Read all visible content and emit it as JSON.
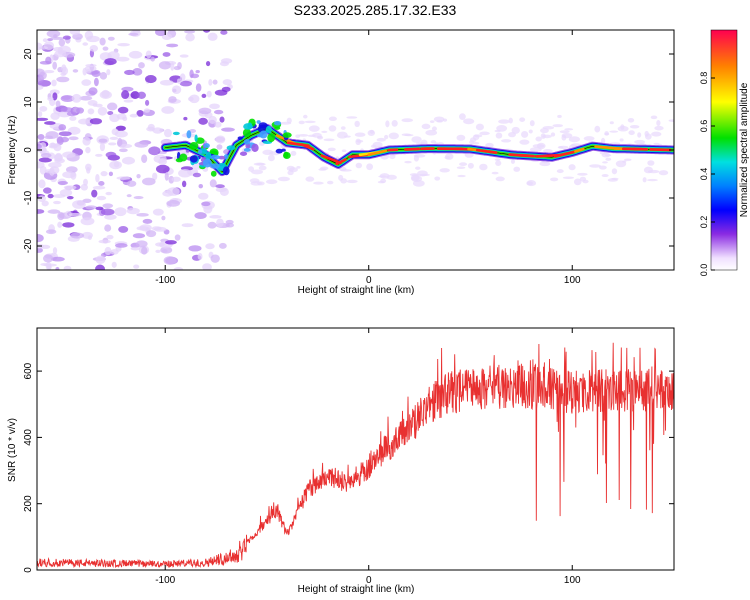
{
  "title": "S233.2025.285.17.32.E33",
  "colors": {
    "snr_line": "#e83030",
    "axis": "#000000",
    "contour": "#000000"
  },
  "chart_data": [
    {
      "type": "heatmap",
      "name": "spectrogram",
      "xlabel": "Height of straight line (km)",
      "ylabel": "Frequency (Hz)",
      "xlim": [
        -163,
        150
      ],
      "ylim": [
        -25,
        25
      ],
      "x_ticks": [
        -100,
        0,
        100
      ],
      "x_tick_labels": [
        "-100",
        "0",
        "100"
      ],
      "y_ticks": [
        -20,
        -10,
        0,
        10,
        20
      ],
      "y_tick_labels": [
        "-20",
        "-10",
        "0",
        "10",
        "20"
      ],
      "colorbar": {
        "label": "Normalized spectral amplitude",
        "range": [
          0,
          1
        ],
        "ticks": [
          0.0,
          0.2,
          0.4,
          0.6,
          0.8
        ],
        "tick_labels": [
          "0.0",
          "0.2",
          "0.4",
          "0.6",
          "0.8"
        ]
      },
      "ridge_track": [
        {
          "x": -100,
          "f": 0.5
        },
        {
          "x": -90,
          "f": 1.0
        },
        {
          "x": -80,
          "f": -1.0
        },
        {
          "x": -72,
          "f": -4.5
        },
        {
          "x": -65,
          "f": 1.0
        },
        {
          "x": -58,
          "f": 3.0
        },
        {
          "x": -50,
          "f": 4.5
        },
        {
          "x": -40,
          "f": 1.5
        },
        {
          "x": -30,
          "f": 1.0
        },
        {
          "x": -22,
          "f": -1.5
        },
        {
          "x": -15,
          "f": -3.0
        },
        {
          "x": -8,
          "f": -1.0
        },
        {
          "x": 0,
          "f": -1.0
        },
        {
          "x": 10,
          "f": 0.0
        },
        {
          "x": 30,
          "f": 0.3
        },
        {
          "x": 50,
          "f": 0.2
        },
        {
          "x": 70,
          "f": -1.0
        },
        {
          "x": 90,
          "f": -1.5
        },
        {
          "x": 100,
          "f": -0.5
        },
        {
          "x": 110,
          "f": 0.8
        },
        {
          "x": 120,
          "f": 0.3
        },
        {
          "x": 150,
          "f": 0.0
        }
      ]
    },
    {
      "type": "line",
      "name": "snr",
      "xlabel": "Height of straight line (km)",
      "ylabel": "SNR (10 * v/v)",
      "xlim": [
        -163,
        150
      ],
      "ylim": [
        0,
        730
      ],
      "x_ticks": [
        -100,
        0,
        100
      ],
      "x_tick_labels": [
        "-100",
        "0",
        "100"
      ],
      "y_ticks": [
        0,
        200,
        400,
        600
      ],
      "y_tick_labels": [
        "0",
        "200",
        "400",
        "600"
      ],
      "envelope": [
        {
          "x": -163,
          "v": 25
        },
        {
          "x": -100,
          "v": 20
        },
        {
          "x": -80,
          "v": 25
        },
        {
          "x": -65,
          "v": 50
        },
        {
          "x": -55,
          "v": 130
        },
        {
          "x": -45,
          "v": 200
        },
        {
          "x": -40,
          "v": 120
        },
        {
          "x": -30,
          "v": 270
        },
        {
          "x": -20,
          "v": 320
        },
        {
          "x": -10,
          "v": 290
        },
        {
          "x": 0,
          "v": 350
        },
        {
          "x": 10,
          "v": 420
        },
        {
          "x": 20,
          "v": 480
        },
        {
          "x": 30,
          "v": 560
        },
        {
          "x": 40,
          "v": 600
        },
        {
          "x": 60,
          "v": 620
        },
        {
          "x": 80,
          "v": 620
        },
        {
          "x": 100,
          "v": 600
        },
        {
          "x": 120,
          "v": 610
        },
        {
          "x": 150,
          "v": 600
        }
      ],
      "noise_fraction": 0.18,
      "point_count": 1500
    }
  ]
}
